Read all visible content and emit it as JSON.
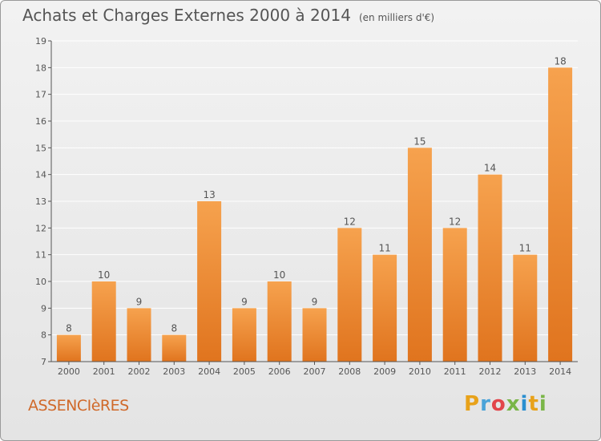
{
  "header": {
    "title": "Achats et Charges Externes 2000 à 2014",
    "unit": "(en milliers d'€)"
  },
  "footer": {
    "commune": "ASSENCIèRES",
    "logo_letters": [
      "P",
      "r",
      "o",
      "x",
      "i",
      "t",
      "i"
    ],
    "logo_colors": [
      "#e8a21a",
      "#4aa3d8",
      "#e2454a",
      "#7ab648",
      "#2a8fd0",
      "#e8a21a",
      "#7ab648"
    ]
  },
  "chart_data": {
    "type": "bar",
    "categories": [
      "2000",
      "2001",
      "2002",
      "2003",
      "2004",
      "2005",
      "2006",
      "2007",
      "2008",
      "2009",
      "2010",
      "2011",
      "2012",
      "2013",
      "2014"
    ],
    "values": [
      8,
      10,
      9,
      8,
      13,
      9,
      10,
      9,
      12,
      11,
      15,
      12,
      14,
      11,
      18
    ],
    "data_labels": [
      "8",
      "10",
      "9",
      "8",
      "13",
      "9",
      "10",
      "9",
      "12",
      "11",
      "15",
      "12",
      "14",
      "11",
      "18"
    ],
    "yticks": [
      7,
      8,
      9,
      10,
      11,
      12,
      13,
      14,
      15,
      16,
      17,
      18,
      19
    ],
    "ylim": [
      7,
      19
    ],
    "grid": true,
    "colors": {
      "bar_light": "#f6a24e",
      "bar_dark": "#e0741e",
      "grid": "#ffffff",
      "axis": "#555555",
      "text": "#555555"
    }
  }
}
